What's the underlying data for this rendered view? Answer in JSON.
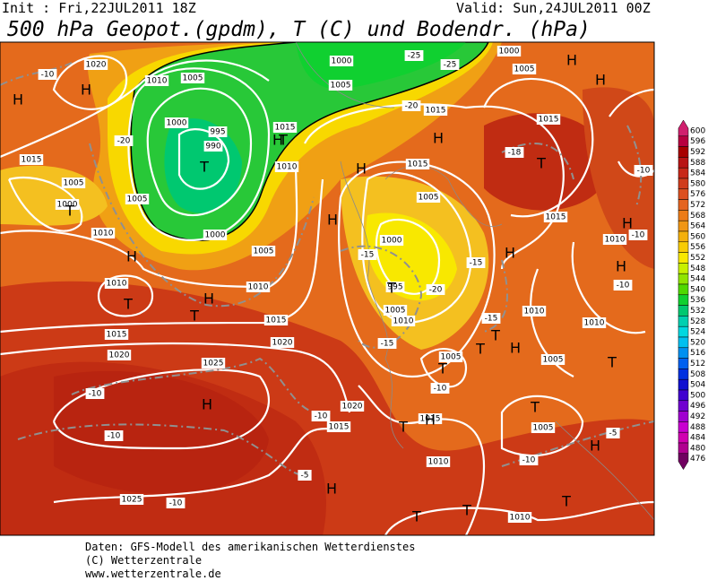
{
  "header": {
    "init": "Init : Fri,22JUL2011 18Z",
    "valid": "Valid: Sun,24JUL2011 00Z",
    "title": "500 hPa Geopot.(gpdm), T (C) und Bodendr. (hPa)"
  },
  "map": {
    "labels": [
      "1020",
      "1010",
      "1005",
      "1000",
      "995",
      "990",
      "1000",
      "1005",
      "1010",
      "1005",
      "1000",
      "1015",
      "1010",
      "1015",
      "1020",
      "1025",
      "1025",
      "1015",
      "1010",
      "1005",
      "1010",
      "1015",
      "1020",
      "1000",
      "1005",
      "1000",
      "1005",
      "1015",
      "1015",
      "1015",
      "1005",
      "1000",
      "995",
      "1005",
      "1010",
      "1015",
      "1010",
      "1010",
      "1010",
      "1005",
      "1005",
      "1020",
      "1015",
      "1015",
      "1010",
      "1005",
      "1010",
      "-10",
      "-20",
      "-25",
      "-25",
      "-20",
      "-15",
      "-15",
      "-20",
      "-15",
      "-15",
      "-10",
      "-10",
      "-10",
      "-10",
      "-5",
      "-10",
      "-10",
      "-5",
      "-10",
      "-10",
      "-18",
      "-10",
      "H",
      "H",
      "H",
      "H",
      "H",
      "H",
      "H",
      "H",
      "H",
      "H",
      "H",
      "H",
      "H",
      "H",
      "H",
      "H",
      "H",
      "H",
      "T",
      "T",
      "T",
      "T",
      "T",
      "T",
      "T",
      "T",
      "T",
      "T",
      "T",
      "T",
      "T",
      "T",
      "T",
      "T"
    ]
  },
  "legend": {
    "ticks": [
      600,
      596,
      592,
      588,
      584,
      580,
      576,
      572,
      568,
      564,
      560,
      556,
      552,
      548,
      544,
      540,
      536,
      532,
      528,
      524,
      520,
      516,
      512,
      508,
      504,
      500,
      496,
      492,
      488,
      484,
      480,
      476
    ],
    "colors": [
      "#d0206e",
      "#b80040",
      "#a80000",
      "#b81414",
      "#c82818",
      "#d03c1c",
      "#dc5020",
      "#e46420",
      "#ec7c18",
      "#f09614",
      "#f4b00c",
      "#f8cc04",
      "#f8e800",
      "#c8f000",
      "#90e400",
      "#50d800",
      "#10d030",
      "#00c870",
      "#00d0b0",
      "#00d8e0",
      "#00c0f0",
      "#0090f0",
      "#0060f0",
      "#0030e0",
      "#1010d0",
      "#4000d0",
      "#7000d0",
      "#a000d0",
      "#c800d0",
      "#d000b0",
      "#b00090",
      "#700060"
    ]
  },
  "footer": [
    "Daten: GFS-Modell des amerikanischen Wetterdienstes",
    "(C) Wetterzentrale",
    "www.wetterzentrale.de"
  ]
}
